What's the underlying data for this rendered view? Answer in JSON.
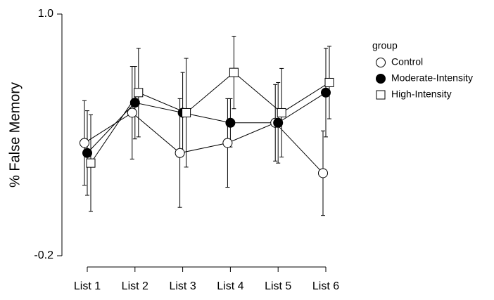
{
  "chart_data": {
    "type": "line",
    "y_label": "% False Memory",
    "categories": [
      "List 1",
      "List 2",
      "List 3",
      "List 4",
      "List 5",
      "List 6"
    ],
    "ylim": [
      -0.2,
      1.0
    ],
    "yticks": [
      {
        "value": 1,
        "label": "1.0"
      },
      -0.2
    ],
    "legend_title": "group",
    "legend_position": "right",
    "series": [
      {
        "name": "Control",
        "color": "#ffffff",
        "marker": "circle",
        "values": [
          0.36,
          0.51,
          0.31,
          0.36,
          0.46,
          0.21
        ],
        "errors": [
          0.21,
          0.23,
          0.27,
          0.22,
          0.19,
          0.21
        ]
      },
      {
        "name": "Moderate-Intensity",
        "color": "#000000",
        "marker": "circle",
        "values": [
          0.31,
          0.56,
          0.51,
          0.46,
          0.46,
          0.61
        ],
        "errors": [
          0.21,
          0.18,
          0.2,
          0.12,
          0.2,
          0.22
        ]
      },
      {
        "name": "High-Intensity",
        "color": "#ffffff",
        "marker": "square",
        "values": [
          0.26,
          0.61,
          0.51,
          0.71,
          0.51,
          0.66
        ],
        "errors": [
          0.24,
          0.22,
          0.27,
          0.18,
          0.22,
          0.18
        ]
      }
    ]
  }
}
